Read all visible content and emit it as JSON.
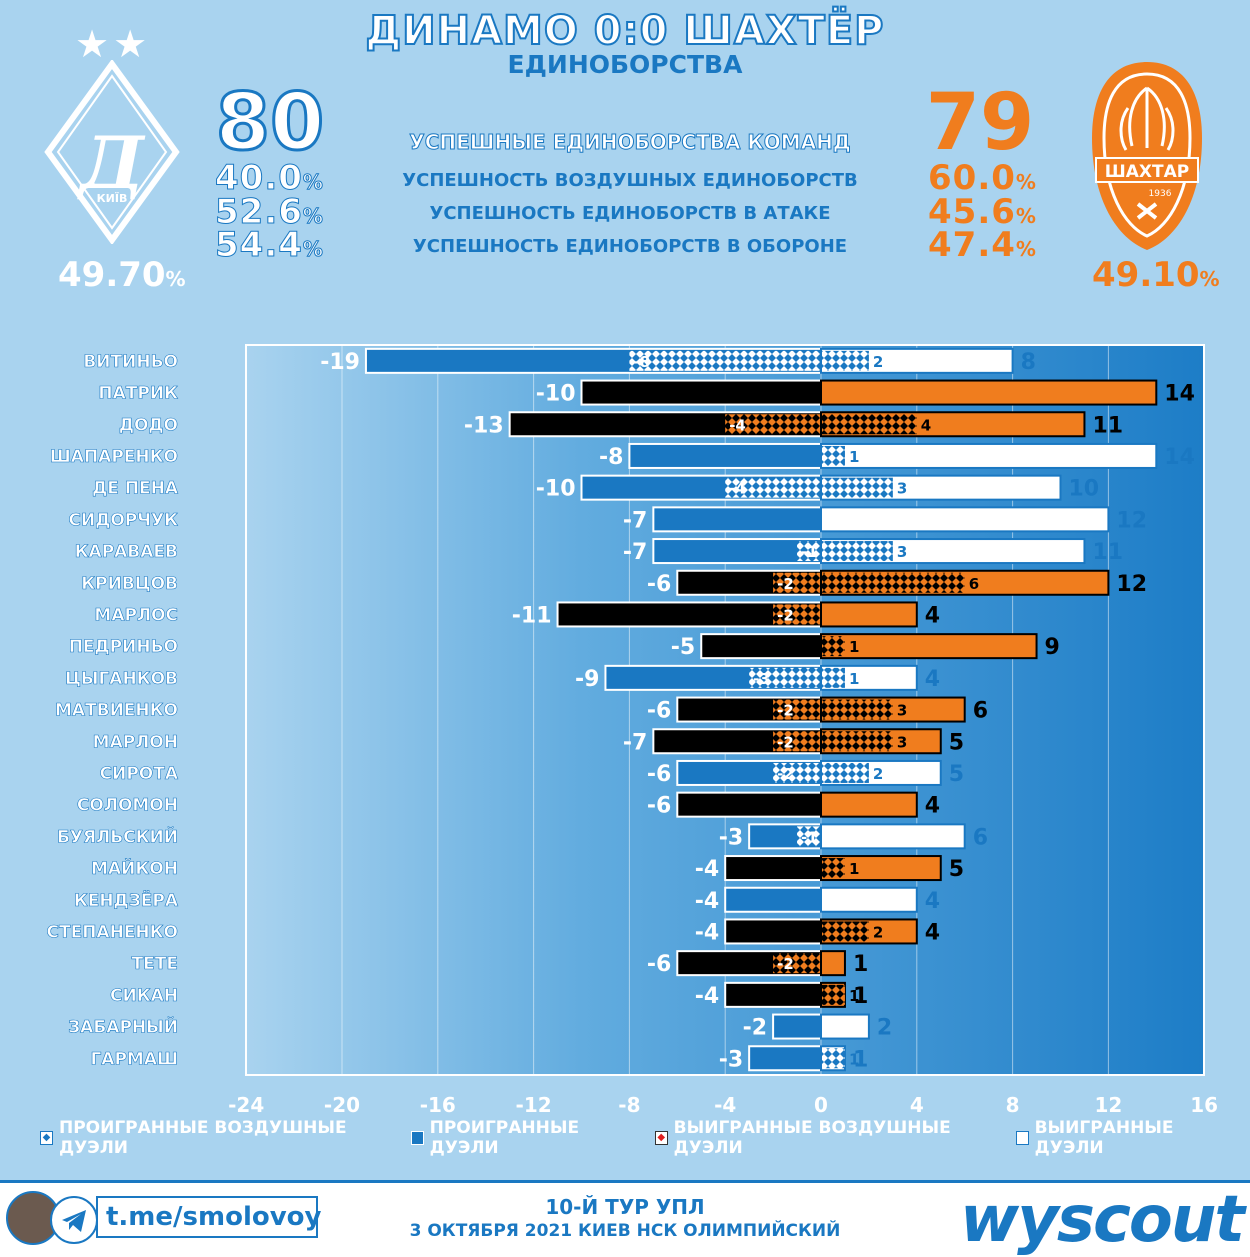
{
  "title": "ДИНАМО 0:0 ШАХТЁР",
  "subtitle": "ЕДИНОБОРСТВА",
  "home": {
    "score": "80",
    "pcts": [
      "40.0",
      "52.6",
      "54.4"
    ],
    "total": "49.70",
    "club": "КИЇВ",
    "star_icons": "★★"
  },
  "away": {
    "score": "79",
    "pcts": [
      "60.0",
      "45.6",
      "47.4"
    ],
    "total": "49.10",
    "club": "ШАХТАР",
    "year": "1936"
  },
  "metrics": [
    "УСПЕШНЫЕ ЕДИНОБОРСТВА КОМАНД",
    "УСПЕШНОСТЬ ВОЗДУШНЫХ ЕДИНОБОРСТВ",
    "УСПЕШНОСТЬ ЕДИНОБОРСТВ В АТАКЕ",
    "УСПЕШНОСТЬ ЕДИНОБОРСТВ В ОБОРОНЕ"
  ],
  "pct_sign": "%",
  "colors": {
    "dynamo_blue": "#1a78c2",
    "shakhtar_orange": "#f07d1e",
    "black": "#000000",
    "white": "#ffffff",
    "background": "#a9d3ef"
  },
  "chart_data": {
    "type": "bar",
    "orientation": "horizontal",
    "categories": [
      "ВИТИНЬО",
      "ПАТРИК",
      "ДОДО",
      "ШАПАРЕНКО",
      "ДЕ ПЕНА",
      "СИДОРЧУК",
      "КАРАВАЕВ",
      "КРИВЦОВ",
      "МАРЛОС",
      "ПЕДРИНЬО",
      "ЦЫГАНКОВ",
      "МАТВИЕНКО",
      "МАРЛОН",
      "СИРОТА",
      "СОЛОМОН",
      "БУЯЛЬСКИЙ",
      "МАЙКОН",
      "КЕНДЗЁРА",
      "СТЕПАНЕНКО",
      "ТЕТЕ",
      "СИКАН",
      "ЗАБАРНЫЙ",
      "ГАРМАШ"
    ],
    "team": [
      "dynamo",
      "shakhtar",
      "shakhtar",
      "dynamo",
      "dynamo",
      "dynamo",
      "dynamo",
      "shakhtar",
      "shakhtar",
      "shakhtar",
      "dynamo",
      "shakhtar",
      "shakhtar",
      "dynamo",
      "shakhtar",
      "dynamo",
      "shakhtar",
      "dynamo",
      "shakhtar",
      "shakhtar",
      "shakhtar",
      "dynamo",
      "dynamo"
    ],
    "series": [
      {
        "name": "ПРОИГРАННЫЕ ДУЭЛИ",
        "values": [
          -19,
          -10,
          -13,
          -8,
          -10,
          -7,
          -7,
          -6,
          -11,
          -5,
          -9,
          -6,
          -7,
          -6,
          -6,
          -3,
          -4,
          -4,
          -4,
          -6,
          -4,
          -2,
          -3
        ]
      },
      {
        "name": "ПРОИГРАННЫЕ ВОЗДУШНЫЕ ДУЭЛИ",
        "values": [
          -8,
          0,
          -4,
          0,
          -4,
          0,
          -1,
          -2,
          -2,
          0,
          -3,
          -2,
          -2,
          -2,
          0,
          -1,
          0,
          0,
          0,
          -2,
          0,
          0,
          0
        ]
      },
      {
        "name": "ВЫИГРАННЫЕ ДУЭЛИ",
        "values": [
          8,
          14,
          11,
          14,
          10,
          12,
          11,
          12,
          4,
          9,
          4,
          6,
          5,
          5,
          4,
          6,
          5,
          4,
          4,
          1,
          1,
          2,
          1
        ]
      },
      {
        "name": "ВЫИГРАННЫЕ ВОЗДУШНЫЕ ДУЭЛИ",
        "values": [
          2,
          0,
          4,
          1,
          3,
          0,
          3,
          6,
          0,
          1,
          1,
          3,
          3,
          2,
          0,
          0,
          1,
          0,
          2,
          0,
          1,
          0,
          1
        ]
      }
    ],
    "xlim": [
      -24,
      16
    ],
    "xticks": [
      -24,
      -20,
      -16,
      -12,
      -8,
      -4,
      0,
      4,
      8,
      12,
      16
    ],
    "grid": true,
    "legend_position": "bottom"
  },
  "legend": [
    "ПРОИГРАННЫЕ ВОЗДУШНЫЕ ДУЭЛИ",
    "ПРОИГРАННЫЕ ДУЭЛИ",
    "ВЫИГРАННЫЕ ВОЗДУШНЫЕ ДУЭЛИ",
    "ВЫИГРАННЫЕ ДУЭЛИ"
  ],
  "footer": {
    "telegram": "t.me/smolovoy",
    "round": "10-Й ТУР УПЛ",
    "date": "3 ОКТЯБРЯ 2021 КИЕВ НСК ОЛИМПИЙСКИЙ",
    "brand": "wyscout"
  }
}
